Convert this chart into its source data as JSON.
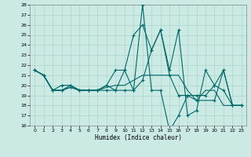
{
  "xlabel": "Humidex (Indice chaleur)",
  "xlim": [
    -0.5,
    23.5
  ],
  "ylim": [
    16,
    28
  ],
  "yticks": [
    16,
    17,
    18,
    19,
    20,
    21,
    22,
    23,
    24,
    25,
    26,
    27,
    28
  ],
  "xticks": [
    0,
    1,
    2,
    3,
    4,
    5,
    6,
    7,
    8,
    9,
    10,
    11,
    12,
    13,
    14,
    15,
    16,
    17,
    18,
    19,
    20,
    21,
    22,
    23
  ],
  "bg_color": "#cceae4",
  "grid_color": "#aad4cc",
  "line_color": "#006868",
  "line1_x": [
    0,
    1,
    2,
    3,
    4,
    5,
    6,
    7,
    8,
    9,
    10,
    11,
    12,
    13,
    14,
    15,
    16,
    17,
    18,
    19,
    20,
    21,
    22,
    23
  ],
  "line1_y": [
    21.5,
    21.0,
    19.5,
    19.5,
    19.8,
    19.5,
    19.5,
    19.5,
    19.8,
    20.0,
    20.0,
    20.5,
    21.0,
    21.0,
    21.0,
    21.0,
    21.0,
    19.5,
    18.5,
    19.5,
    19.5,
    18.0,
    18.0,
    18.0
  ],
  "line2_x": [
    0,
    1,
    2,
    3,
    4,
    5,
    6,
    7,
    8,
    9,
    10,
    11,
    12,
    13,
    14,
    15,
    16,
    17,
    18,
    20,
    21,
    22,
    23
  ],
  "line2_y": [
    21.5,
    21.0,
    19.5,
    19.5,
    19.8,
    19.5,
    19.5,
    19.5,
    20.0,
    19.5,
    21.5,
    19.5,
    28.0,
    19.5,
    19.5,
    15.5,
    17.0,
    19.0,
    18.5,
    18.5,
    21.5,
    18.0,
    18.0
  ],
  "line3_x": [
    0,
    1,
    2,
    3,
    4,
    5,
    6,
    7,
    8,
    9,
    10,
    11,
    12,
    13,
    14,
    15,
    16,
    17,
    18,
    19,
    20,
    21,
    22,
    23
  ],
  "line3_y": [
    21.5,
    21.0,
    19.5,
    20.0,
    20.0,
    19.5,
    19.5,
    19.5,
    20.0,
    21.5,
    21.5,
    25.0,
    26.0,
    23.5,
    25.5,
    21.5,
    25.5,
    17.0,
    17.5,
    21.5,
    20.0,
    19.5,
    18.0,
    18.0
  ],
  "line4_x": [
    0,
    1,
    2,
    3,
    4,
    5,
    6,
    7,
    8,
    9,
    10,
    11,
    12,
    13,
    14,
    15,
    16,
    17,
    18,
    19,
    20,
    21,
    22,
    23
  ],
  "line4_y": [
    21.5,
    21.0,
    19.5,
    19.5,
    20.0,
    19.5,
    19.5,
    19.5,
    19.5,
    19.5,
    19.5,
    19.5,
    20.5,
    23.5,
    25.5,
    21.0,
    19.0,
    19.0,
    19.0,
    19.0,
    20.0,
    21.5,
    18.0,
    18.0
  ]
}
